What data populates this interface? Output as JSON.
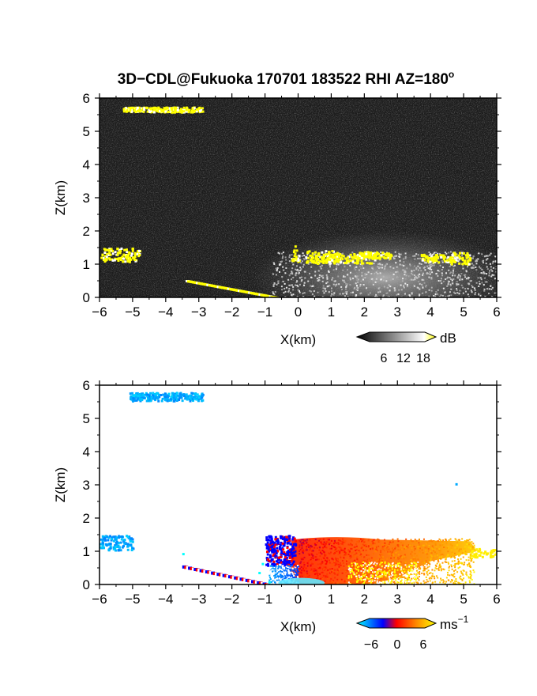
{
  "title": "3D−CDL@Fukuoka 170701 183522 RHI AZ=180",
  "title_superscript": "o",
  "chart_data": [
    {
      "type": "heatmap",
      "quantity": "backscatter",
      "xlabel": "X(km)",
      "ylabel": "Z(km)",
      "xlim": [
        -6,
        6
      ],
      "ylim": [
        0,
        6
      ],
      "xticks": [
        "−6",
        "−5",
        "−4",
        "−3",
        "−2",
        "−1",
        "0",
        "1",
        "2",
        "3",
        "4",
        "5",
        "6"
      ],
      "yticks": [
        "0",
        "1",
        "2",
        "3",
        "4",
        "5",
        "6"
      ],
      "colorbar": {
        "unit": "dB",
        "ticks": [
          "6",
          "12",
          "18"
        ],
        "colors": [
          "#000000",
          "#ffffff",
          "#ffff00"
        ]
      },
      "features": [
        {
          "label": "cloud layer",
          "x": [
            -5.3,
            -2.9
          ],
          "z": [
            5.6,
            5.75
          ],
          "value_db": 18
        },
        {
          "label": "cloud",
          "x": [
            -6.0,
            -4.8
          ],
          "z": [
            1.1,
            1.5
          ],
          "value_db": 18
        },
        {
          "label": "ground echo",
          "x": [
            -3.4,
            -0.7
          ],
          "z": [
            0.0,
            0.5
          ],
          "value_db": 18
        },
        {
          "label": "boundary layer top",
          "x": [
            -0.2,
            6.0
          ],
          "z": [
            0.9,
            1.5
          ],
          "value_db": 18
        }
      ]
    },
    {
      "type": "heatmap",
      "quantity": "radial velocity",
      "xlabel": "X(km)",
      "ylabel": "Z(km)",
      "xlim": [
        -6,
        6
      ],
      "ylim": [
        0,
        6
      ],
      "xticks": [
        "−6",
        "−5",
        "−4",
        "−3",
        "−2",
        "−1",
        "0",
        "1",
        "2",
        "3",
        "4",
        "5",
        "6"
      ],
      "yticks": [
        "0",
        "1",
        "2",
        "3",
        "4",
        "5",
        "6"
      ],
      "colorbar": {
        "unit": "ms",
        "unit_superscript": "−1",
        "ticks": [
          "−6",
          "0",
          "6"
        ],
        "colors": [
          "#00ffff",
          "#0000ff",
          "#ff0000",
          "#ffff00"
        ]
      },
      "features": [
        {
          "label": "cloud layer",
          "x": [
            -5.1,
            -2.9
          ],
          "z": [
            5.55,
            5.8
          ],
          "velocity": -5
        },
        {
          "label": "cloud",
          "x": [
            -6.0,
            -5.0
          ],
          "z": [
            1.05,
            1.5
          ],
          "velocity": -5
        },
        {
          "label": "ground echo",
          "x": [
            -3.5,
            -0.9
          ],
          "z": [
            0.0,
            0.55
          ],
          "velocity": 0
        },
        {
          "label": "boundary layer",
          "x": [
            -1.2,
            6.0
          ],
          "z": [
            0.0,
            1.6
          ],
          "velocity": 3
        },
        {
          "label": "isolated point",
          "x": [
            4.75,
            4.75
          ],
          "z": [
            3.05,
            3.05
          ],
          "velocity": -5
        }
      ]
    }
  ]
}
